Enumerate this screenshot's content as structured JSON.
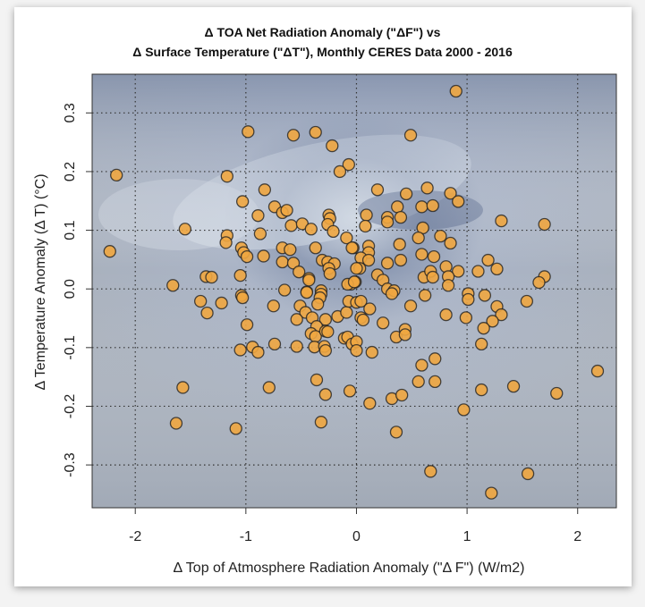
{
  "chart_data": {
    "type": "scatter",
    "title": [
      "Δ TOA Net Radiation Anomaly (\"ΔF\") vs",
      "Δ Surface Temperature (\"ΔT\"), Monthly CERES Data 2000 - 2016"
    ],
    "xlabel": "Δ Top of Atmosphere Radiation Anomaly (\"Δ F\") (W/m2)",
    "ylabel": "Δ Temperature Anomaly  (Δ T) (°C)",
    "xlim": [
      -2.39,
      2.35
    ],
    "ylim": [
      -0.373,
      0.366
    ],
    "xticks": [
      "-2",
      "-1",
      "0",
      "1",
      "2"
    ],
    "yticks": [
      "-0.3",
      "-0.2",
      "-0.1",
      "0.0",
      "0.1",
      "0.2",
      "0.3"
    ],
    "grid": true,
    "grid_style": "dotted",
    "marker_color": "#f0a640",
    "marker_edge_color": "#222222",
    "background": "satellite cloud image",
    "points": [
      [
        0.9,
        0.337
      ],
      [
        0.49,
        0.262
      ],
      [
        0.19,
        0.169
      ],
      [
        0.45,
        0.162
      ],
      [
        0.64,
        0.172
      ],
      [
        0.85,
        0.163
      ],
      [
        0.92,
        0.149
      ],
      [
        0.09,
        0.126
      ],
      [
        0.37,
        0.14
      ],
      [
        0.59,
        0.14
      ],
      [
        0.69,
        0.142
      ],
      [
        0.28,
        0.122
      ],
      [
        0.28,
        0.114
      ],
      [
        0.4,
        0.122
      ],
      [
        0.08,
        0.107
      ],
      [
        0.6,
        0.104
      ],
      [
        0.56,
        0.087
      ],
      [
        0.76,
        0.09
      ],
      [
        0.85,
        0.078
      ],
      [
        0.39,
        0.076
      ],
      [
        -0.03,
        0.07
      ],
      [
        0.11,
        0.073
      ],
      [
        0.11,
        0.062
      ],
      [
        0.04,
        0.053
      ],
      [
        0.11,
        0.049
      ],
      [
        0.28,
        0.044
      ],
      [
        0.4,
        0.049
      ],
      [
        0.59,
        0.059
      ],
      [
        0.7,
        0.055
      ],
      [
        0.81,
        0.038
      ],
      [
        0.92,
        0.03
      ],
      [
        1.1,
        0.03
      ],
      [
        1.19,
        0.049
      ],
      [
        1.27,
        0.034
      ],
      [
        1.31,
        0.116
      ],
      [
        1.7,
        0.11
      ],
      [
        1.7,
        0.021
      ],
      [
        1.65,
        0.011
      ],
      [
        0.03,
        0.035
      ],
      [
        0.19,
        0.024
      ],
      [
        0.24,
        0.015
      ],
      [
        0.28,
        0.0
      ],
      [
        0.34,
        -0.003
      ],
      [
        0.61,
        0.02
      ],
      [
        0.67,
        0.03
      ],
      [
        0.69,
        0.02
      ],
      [
        0.83,
        0.021
      ],
      [
        0.83,
        0.006
      ],
      [
        1.01,
        -0.008
      ],
      [
        1.16,
        -0.011
      ],
      [
        -0.05,
        0.008
      ],
      [
        -0.01,
        0.012
      ],
      [
        -0.98,
        0.268
      ],
      [
        -0.57,
        0.262
      ],
      [
        -0.37,
        0.267
      ],
      [
        -0.22,
        0.244
      ],
      [
        -0.07,
        0.212
      ],
      [
        -0.15,
        0.2
      ],
      [
        -2.17,
        0.194
      ],
      [
        -1.17,
        0.192
      ],
      [
        -0.83,
        0.169
      ],
      [
        -1.03,
        0.149
      ],
      [
        -0.89,
        0.125
      ],
      [
        -0.74,
        0.14
      ],
      [
        -0.67,
        0.13
      ],
      [
        -0.63,
        0.134
      ],
      [
        -0.59,
        0.108
      ],
      [
        -0.49,
        0.111
      ],
      [
        -0.41,
        0.102
      ],
      [
        -0.25,
        0.126
      ],
      [
        -0.24,
        0.12
      ],
      [
        -0.26,
        0.11
      ],
      [
        -0.21,
        0.098
      ],
      [
        -0.09,
        0.087
      ],
      [
        -0.04,
        0.07
      ],
      [
        -1.55,
        0.102
      ],
      [
        -2.23,
        0.064
      ],
      [
        -1.17,
        0.091
      ],
      [
        -1.18,
        0.079
      ],
      [
        -1.04,
        0.07
      ],
      [
        -1.02,
        0.062
      ],
      [
        -0.99,
        0.055
      ],
      [
        -0.87,
        0.094
      ],
      [
        -0.84,
        0.056
      ],
      [
        -0.67,
        0.07
      ],
      [
        -0.6,
        0.067
      ],
      [
        -0.37,
        0.07
      ],
      [
        -0.67,
        0.046
      ],
      [
        -0.57,
        0.044
      ],
      [
        -0.52,
        0.029
      ],
      [
        -0.43,
        0.018
      ],
      [
        -0.43,
        0.015
      ],
      [
        -0.31,
        0.049
      ],
      [
        -0.26,
        0.046
      ],
      [
        -0.2,
        0.043
      ],
      [
        -0.25,
        0.035
      ],
      [
        -0.24,
        0.026
      ],
      [
        0.0,
        0.035
      ],
      [
        -1.36,
        0.021
      ],
      [
        -1.31,
        0.02
      ],
      [
        -1.05,
        0.023
      ],
      [
        -1.66,
        0.006
      ],
      [
        -0.65,
        -0.002
      ],
      [
        -0.45,
        -0.005
      ],
      [
        -0.32,
        -0.003
      ],
      [
        -1.04,
        -0.011
      ],
      [
        -0.08,
        0.008
      ],
      [
        -0.02,
        0.012
      ],
      [
        -1.41,
        -0.021
      ],
      [
        -1.22,
        -0.024
      ],
      [
        -1.35,
        -0.041
      ],
      [
        -1.03,
        -0.015
      ],
      [
        -0.99,
        -0.061
      ],
      [
        -0.75,
        -0.029
      ],
      [
        -0.45,
        -0.006
      ],
      [
        -0.32,
        -0.009
      ],
      [
        -0.33,
        -0.015
      ],
      [
        -0.35,
        -0.026
      ],
      [
        -0.51,
        -0.029
      ],
      [
        -0.46,
        -0.04
      ],
      [
        -0.54,
        -0.052
      ],
      [
        -0.4,
        -0.049
      ],
      [
        -0.28,
        -0.052
      ],
      [
        -0.17,
        -0.047
      ],
      [
        -0.09,
        -0.04
      ],
      [
        -0.07,
        -0.021
      ],
      [
        0.0,
        -0.023
      ],
      [
        -0.36,
        -0.064
      ],
      [
        -0.41,
        -0.076
      ],
      [
        -0.37,
        -0.081
      ],
      [
        -0.28,
        -0.072
      ],
      [
        -0.26,
        -0.073
      ],
      [
        -0.11,
        -0.084
      ],
      [
        -0.08,
        -0.082
      ],
      [
        -0.04,
        -0.094
      ],
      [
        0.0,
        -0.09
      ],
      [
        0.0,
        -0.105
      ],
      [
        -1.05,
        -0.104
      ],
      [
        -0.94,
        -0.099
      ],
      [
        -0.89,
        -0.108
      ],
      [
        -0.74,
        -0.094
      ],
      [
        -0.54,
        -0.098
      ],
      [
        -0.38,
        -0.099
      ],
      [
        -0.29,
        -0.098
      ],
      [
        -0.28,
        -0.105
      ],
      [
        -1.57,
        -0.168
      ],
      [
        -0.79,
        -0.168
      ],
      [
        -0.36,
        -0.155
      ],
      [
        -0.28,
        -0.18
      ],
      [
        -0.06,
        -0.174
      ],
      [
        -1.63,
        -0.229
      ],
      [
        -1.09,
        -0.238
      ],
      [
        -0.32,
        -0.227
      ],
      [
        0.32,
        -0.008
      ],
      [
        0.62,
        -0.011
      ],
      [
        1.01,
        -0.018
      ],
      [
        1.54,
        -0.021
      ],
      [
        1.27,
        -0.03
      ],
      [
        1.31,
        -0.044
      ],
      [
        1.23,
        -0.055
      ],
      [
        1.15,
        -0.067
      ],
      [
        1.13,
        -0.094
      ],
      [
        0.99,
        -0.049
      ],
      [
        0.81,
        -0.044
      ],
      [
        0.49,
        -0.029
      ],
      [
        0.04,
        -0.021
      ],
      [
        0.12,
        -0.034
      ],
      [
        0.04,
        -0.049
      ],
      [
        0.06,
        -0.053
      ],
      [
        0.24,
        -0.058
      ],
      [
        0.36,
        -0.082
      ],
      [
        0.44,
        -0.069
      ],
      [
        0.44,
        -0.078
      ],
      [
        0.14,
        -0.108
      ],
      [
        0.71,
        -0.119
      ],
      [
        0.59,
        -0.13
      ],
      [
        0.56,
        -0.158
      ],
      [
        0.71,
        -0.158
      ],
      [
        1.13,
        -0.172
      ],
      [
        1.42,
        -0.166
      ],
      [
        1.81,
        -0.178
      ],
      [
        2.18,
        -0.14
      ],
      [
        0.12,
        -0.195
      ],
      [
        0.32,
        -0.187
      ],
      [
        0.41,
        -0.181
      ],
      [
        0.97,
        -0.206
      ],
      [
        0.36,
        -0.244
      ],
      [
        0.67,
        -0.311
      ],
      [
        1.55,
        -0.315
      ],
      [
        1.22,
        -0.348
      ]
    ]
  }
}
